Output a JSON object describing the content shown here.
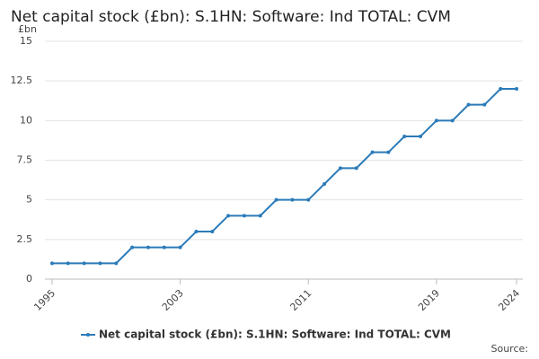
{
  "chart_data": {
    "type": "line",
    "title": "Net capital stock (£bn): S.1HN: Software: Ind TOTAL: CVM",
    "y_unit": "£bn",
    "source": "Source:",
    "x": [
      1995,
      1996,
      1997,
      1998,
      1999,
      2000,
      2001,
      2002,
      2003,
      2004,
      2005,
      2006,
      2007,
      2008,
      2009,
      2010,
      2011,
      2012,
      2013,
      2014,
      2015,
      2016,
      2017,
      2018,
      2019,
      2020,
      2021,
      2022,
      2023,
      2024
    ],
    "series": [
      {
        "name": "Net capital stock (£bn): S.1HN: Software: Ind TOTAL: CVM",
        "color": "#2b7bb9",
        "values": [
          1,
          1,
          1,
          1,
          1,
          2,
          2,
          2,
          2,
          3,
          3,
          4,
          4,
          4,
          5,
          5,
          5,
          6,
          7,
          7,
          8,
          8,
          9,
          9,
          10,
          10,
          11,
          11,
          12,
          12
        ]
      }
    ],
    "xlim": [
      1995,
      2024
    ],
    "xticks": [
      1995,
      2003,
      2011,
      2019,
      2024
    ],
    "ylim": [
      0,
      15
    ],
    "yticks": [
      0,
      2.5,
      5,
      7.5,
      10,
      12.5,
      15
    ],
    "grid": true,
    "legend": "bottom"
  }
}
